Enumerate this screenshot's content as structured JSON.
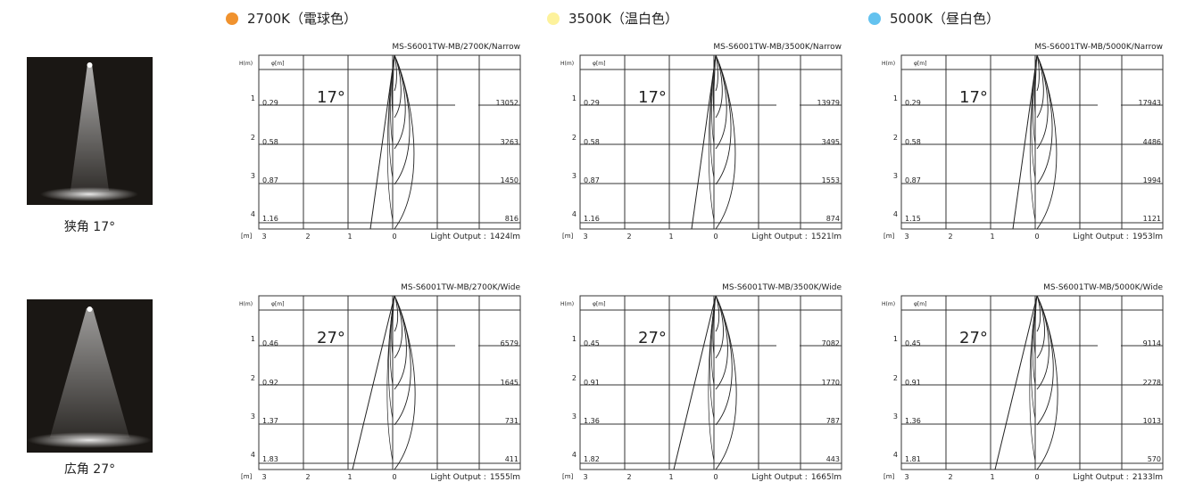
{
  "columns": [
    {
      "label": "2700K（電球色）"
    },
    {
      "label": "3500K（温白色）"
    },
    {
      "label": "5000K（昼白色）"
    }
  ],
  "labels": {
    "height": "H(m)",
    "diameter": "φ[m]",
    "heights": [
      "1",
      "2",
      "3",
      "4"
    ],
    "x_unit": "[m]",
    "x_ticks": [
      "3",
      "2",
      "1",
      "0"
    ],
    "output": "Light Output :"
  },
  "rows": [
    {
      "caption": "狭角 17°",
      "angle": "17°",
      "charts": [
        {
          "title": "MS-S6001TW-MB/2700K/Narrow",
          "diameters": [
            "0.29",
            "0.58",
            "0.87",
            "1.16"
          ],
          "illuminance": [
            "13052",
            "3263",
            "1450",
            "816"
          ],
          "output": "1424lm"
        },
        {
          "title": "MS-S6001TW-MB/3500K/Narrow",
          "diameters": [
            "0.29",
            "0.58",
            "0.87",
            "1.16"
          ],
          "illuminance": [
            "13979",
            "3495",
            "1553",
            "874"
          ],
          "output": "1521lm"
        },
        {
          "title": "MS-S6001TW-MB/5000K/Narrow",
          "diameters": [
            "0.29",
            "0.58",
            "0.87",
            "1.15"
          ],
          "illuminance": [
            "17943",
            "4486",
            "1994",
            "1121"
          ],
          "output": "1953lm"
        }
      ]
    },
    {
      "caption": "広角 27°",
      "angle": "27°",
      "charts": [
        {
          "title": "MS-S6001TW-MB/2700K/Wide",
          "diameters": [
            "0.46",
            "0.92",
            "1.37",
            "1.83"
          ],
          "illuminance": [
            "6579",
            "1645",
            "731",
            "411"
          ],
          "output": "1555lm"
        },
        {
          "title": "MS-S6001TW-MB/3500K/Wide",
          "diameters": [
            "0.45",
            "0.91",
            "1.36",
            "1.82"
          ],
          "illuminance": [
            "7082",
            "1770",
            "787",
            "443"
          ],
          "output": "1665lm"
        },
        {
          "title": "MS-S6001TW-MB/5000K/Wide",
          "diameters": [
            "0.45",
            "0.91",
            "1.36",
            "1.81"
          ],
          "illuminance": [
            "9114",
            "2278",
            "1013",
            "570"
          ],
          "output": "2133lm"
        }
      ]
    }
  ]
}
